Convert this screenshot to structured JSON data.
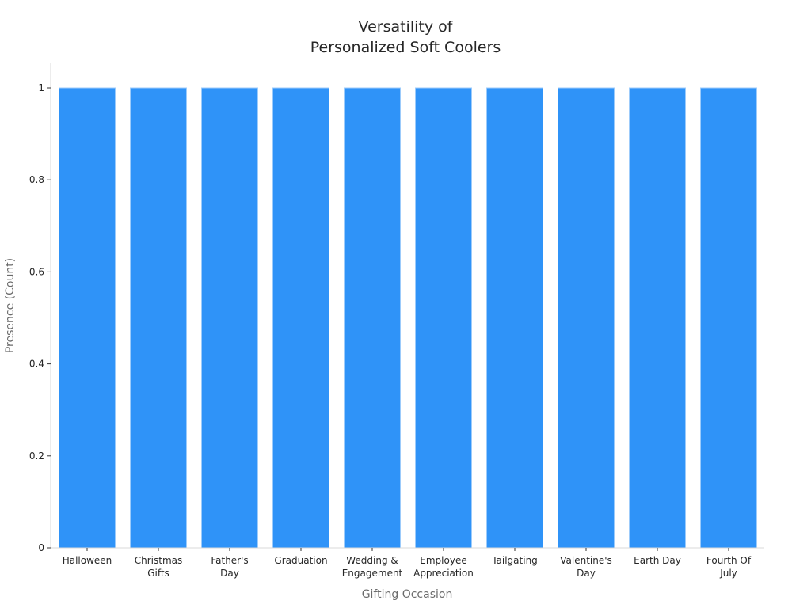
{
  "chart_data": {
    "type": "bar",
    "title_lines": [
      "Versatility of",
      "Personalized Soft Coolers"
    ],
    "xlabel": "Gifting Occasion",
    "ylabel": "Presence (Count)",
    "categories": [
      "Halloween",
      "Christmas Gifts",
      "Father's Day",
      "Graduation",
      "Wedding & Engagement",
      "Employee Appreciation",
      "Tailgating",
      "Valentine's Day",
      "Earth Day",
      "Fourth Of July"
    ],
    "category_label_lines": [
      [
        "Halloween"
      ],
      [
        "Christmas",
        "Gifts"
      ],
      [
        "Father's",
        "Day"
      ],
      [
        "Graduation"
      ],
      [
        "Wedding &",
        "Engagement"
      ],
      [
        "Employee",
        "Appreciation"
      ],
      [
        "Tailgating"
      ],
      [
        "Valentine's",
        "Day"
      ],
      [
        "Earth Day"
      ],
      [
        "Fourth Of",
        "July"
      ]
    ],
    "values": [
      1,
      1,
      1,
      1,
      1,
      1,
      1,
      1,
      1,
      1
    ],
    "ylim": [
      0,
      1
    ],
    "yticks": [
      0,
      0.2,
      0.4,
      0.6,
      0.8,
      1
    ],
    "ytick_labels": [
      "0",
      "0.2",
      "0.4",
      "0.6",
      "0.8",
      "1"
    ],
    "grid": false,
    "bar_color": "#2f93f8",
    "bar_edge_color": "#9ccbfb"
  }
}
